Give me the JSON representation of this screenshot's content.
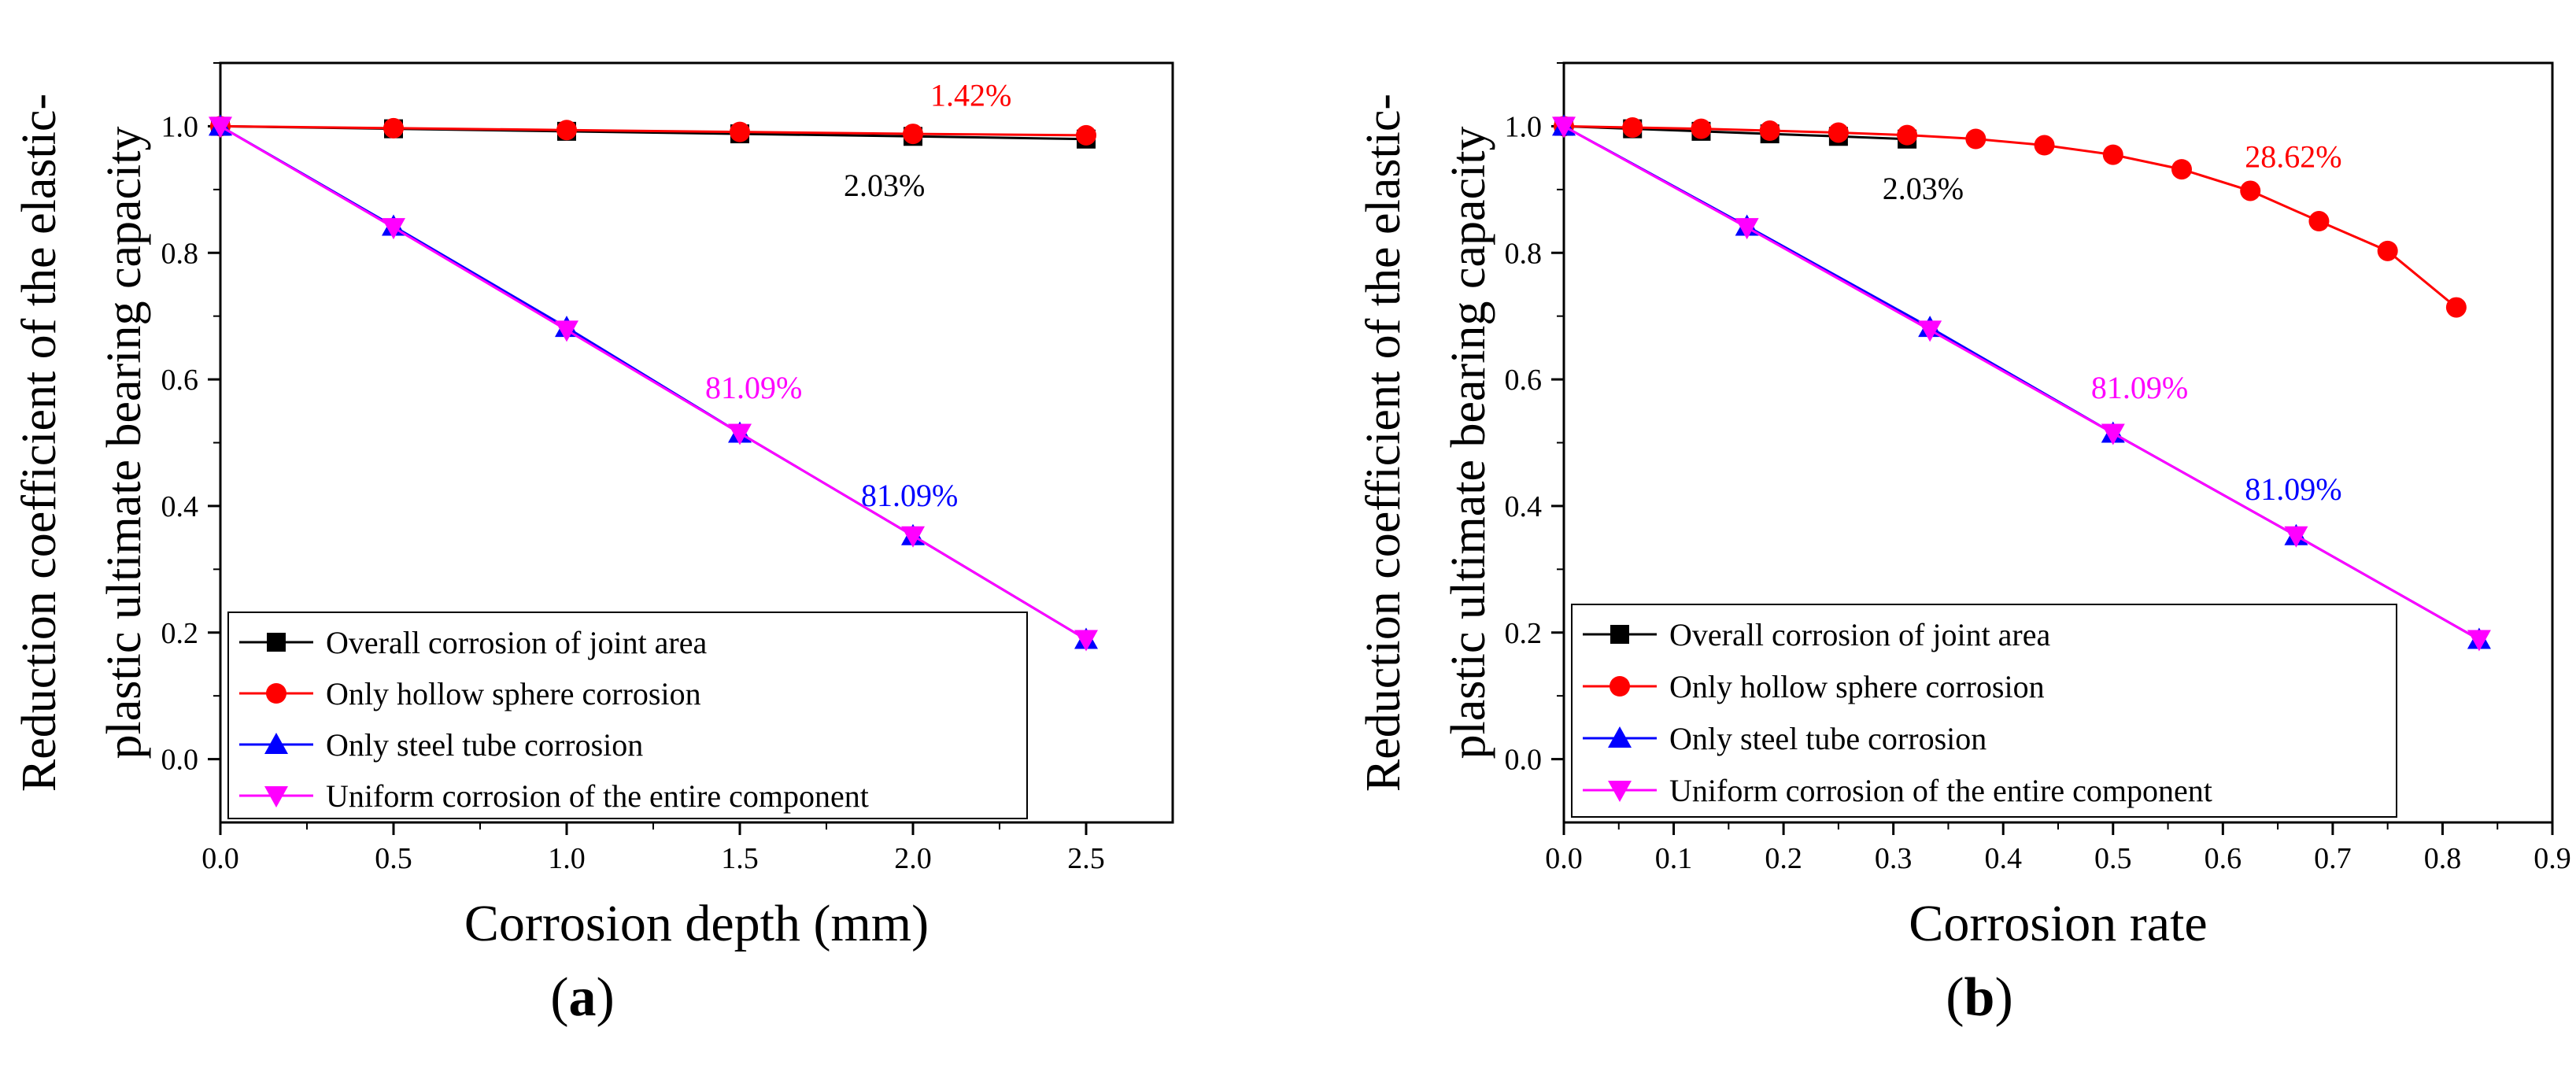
{
  "chart_data": [
    {
      "type": "line",
      "panel_label": "a",
      "xlabel": "Corrosion depth (mm)",
      "ylabel_lines": [
        "Reduction coefficient of the elastic-",
        "plastic ultimate bearing capacity"
      ],
      "xlim": [
        0,
        2.75
      ],
      "ylim": [
        -0.1,
        1.1
      ],
      "xticks": [
        0.0,
        0.5,
        1.0,
        1.5,
        2.0,
        2.5
      ],
      "xtick_labels": [
        "0.0",
        "0.5",
        "1.0",
        "1.5",
        "2.0",
        "2.5"
      ],
      "yticks": [
        0.0,
        0.2,
        0.4,
        0.6,
        0.8,
        1.0
      ],
      "ytick_labels": [
        "0.0",
        "0.2",
        "0.4",
        "0.6",
        "0.8",
        "1.0"
      ],
      "legend_position": "bottom-left",
      "series": [
        {
          "name": "Overall corrosion of joint area",
          "color": "#000000",
          "marker": "square",
          "x": [
            0,
            0.5,
            1.0,
            1.5,
            2.0,
            2.5
          ],
          "y": [
            1.0,
            0.996,
            0.992,
            0.988,
            0.984,
            0.9797
          ]
        },
        {
          "name": "Only hollow sphere corrosion",
          "color": "#ff0000",
          "marker": "circle",
          "x": [
            0,
            0.5,
            1.0,
            1.5,
            2.0,
            2.5
          ],
          "y": [
            1.0,
            0.997,
            0.994,
            0.991,
            0.988,
            0.9858
          ]
        },
        {
          "name": "Only steel tube corrosion",
          "color": "#0000ff",
          "marker": "triangle-up",
          "x": [
            0,
            0.5,
            1.0,
            1.5,
            2.0,
            2.5
          ],
          "y": [
            1.0,
            0.842,
            0.682,
            0.515,
            0.353,
            0.1891
          ]
        },
        {
          "name": "Uniform corrosion of the entire component",
          "color": "#ff00ff",
          "marker": "triangle-down",
          "x": [
            0,
            0.5,
            1.0,
            1.5,
            2.0,
            2.5
          ],
          "y": [
            1.0,
            0.84,
            0.678,
            0.515,
            0.353,
            0.1891
          ]
        }
      ],
      "annotations": [
        {
          "text": "1.42%",
          "x": 2.05,
          "y": 1.032,
          "color": "#ff0000"
        },
        {
          "text": "2.03%",
          "x": 1.8,
          "y": 0.89,
          "color": "#000000"
        },
        {
          "text": "81.09%",
          "x": 1.4,
          "y": 0.57,
          "color": "#ff00ff"
        },
        {
          "text": "81.09%",
          "x": 1.85,
          "y": 0.4,
          "color": "#0000ff"
        }
      ]
    },
    {
      "type": "line",
      "panel_label": "b",
      "xlabel": "Corrosion rate",
      "ylabel_lines": [
        "Reduction coefficient of the elastic-",
        "plastic ultimate bearing capacity"
      ],
      "xlim": [
        0,
        0.9
      ],
      "ylim": [
        -0.1,
        1.1
      ],
      "xticks": [
        0.0,
        0.1,
        0.2,
        0.3,
        0.4,
        0.5,
        0.6,
        0.7,
        0.8,
        0.9
      ],
      "xtick_labels": [
        "0.0",
        "0.1",
        "0.2",
        "0.3",
        "0.4",
        "0.5",
        "0.6",
        "0.7",
        "0.8",
        "0.9"
      ],
      "yticks": [
        0.0,
        0.2,
        0.4,
        0.6,
        0.8,
        1.0
      ],
      "ytick_labels": [
        "0.0",
        "0.2",
        "0.4",
        "0.6",
        "0.8",
        "1.0"
      ],
      "legend_position": "bottom-left",
      "series": [
        {
          "name": "Overall corrosion of joint area",
          "color": "#000000",
          "marker": "square",
          "x": [
            0,
            0.0625,
            0.125,
            0.1875,
            0.25,
            0.3125
          ],
          "y": [
            1.0,
            0.996,
            0.992,
            0.988,
            0.984,
            0.9797
          ]
        },
        {
          "name": "Only hollow sphere corrosion",
          "color": "#ff0000",
          "marker": "circle",
          "x": [
            0,
            0.0625,
            0.125,
            0.1875,
            0.25,
            0.3125,
            0.375,
            0.4375,
            0.5,
            0.5625,
            0.625,
            0.6875,
            0.75,
            0.8125
          ],
          "y": [
            1.0,
            0.998,
            0.996,
            0.993,
            0.99,
            0.986,
            0.98,
            0.97,
            0.955,
            0.932,
            0.898,
            0.85,
            0.803,
            0.7138
          ]
        },
        {
          "name": "Only steel tube corrosion",
          "color": "#0000ff",
          "marker": "triangle-up",
          "x": [
            0,
            0.1667,
            0.3333,
            0.5,
            0.6667,
            0.8333
          ],
          "y": [
            1.0,
            0.842,
            0.682,
            0.515,
            0.353,
            0.1891
          ]
        },
        {
          "name": "Uniform corrosion of the entire component",
          "color": "#ff00ff",
          "marker": "triangle-down",
          "x": [
            0,
            0.1667,
            0.3333,
            0.5,
            0.6667,
            0.8333
          ],
          "y": [
            1.0,
            0.84,
            0.678,
            0.515,
            0.353,
            0.1891
          ]
        }
      ],
      "annotations": [
        {
          "text": "28.62%",
          "x": 0.62,
          "y": 0.935,
          "color": "#ff0000"
        },
        {
          "text": "2.03%",
          "x": 0.29,
          "y": 0.885,
          "color": "#000000"
        },
        {
          "text": "81.09%",
          "x": 0.48,
          "y": 0.57,
          "color": "#ff00ff"
        },
        {
          "text": "81.09%",
          "x": 0.62,
          "y": 0.41,
          "color": "#0000ff"
        }
      ]
    }
  ]
}
